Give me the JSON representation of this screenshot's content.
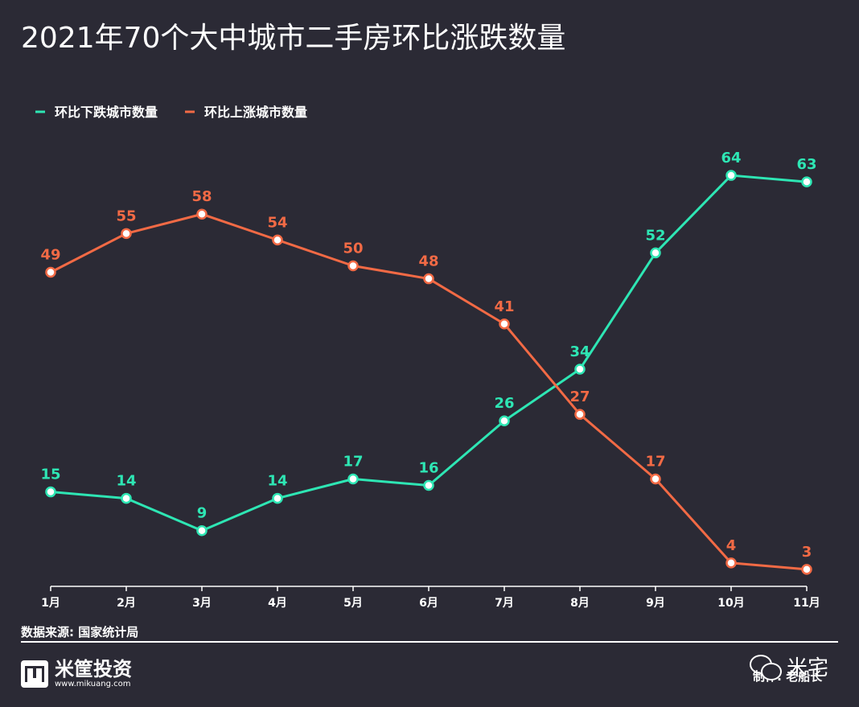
{
  "title": "2021年70个大中城市二手房环比涨跌数量",
  "chart_data": {
    "type": "line",
    "categories": [
      "1月",
      "2月",
      "3月",
      "4月",
      "5月",
      "6月",
      "7月",
      "8月",
      "9月",
      "10月",
      "11月"
    ],
    "series": [
      {
        "name": "环比下跌城市数量",
        "color": "#2ee6b4",
        "values": [
          15,
          14,
          9,
          14,
          17,
          16,
          26,
          34,
          52,
          64,
          63
        ]
      },
      {
        "name": "环比上涨城市数量",
        "color": "#f26a45",
        "values": [
          49,
          55,
          58,
          54,
          50,
          48,
          41,
          27,
          17,
          4,
          3
        ]
      }
    ],
    "ylim": [
      0,
      66
    ],
    "grid": false,
    "legend_position": "top-left"
  },
  "source": "数据来源: 国家统计局",
  "brand": {
    "name": "米筐投资",
    "url": "www.mikuang.com"
  },
  "credit": "制作: 老船长",
  "watermark": "米宅",
  "colors": {
    "background": "#2b2a35",
    "text": "#ffffff"
  }
}
